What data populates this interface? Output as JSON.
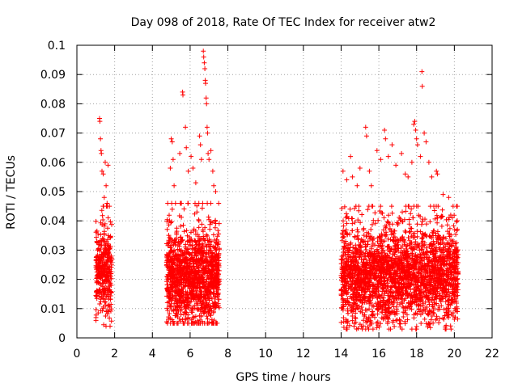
{
  "chart_data": {
    "type": "scatter",
    "title": "Day 098 of 2018, Rate Of TEC Index for receiver atw2",
    "xlabel": "GPS time / hours",
    "ylabel": "ROTI / TECUs",
    "xlim": [
      0,
      22
    ],
    "ylim": [
      0,
      0.1
    ],
    "x_ticks": [
      "0",
      "2",
      "4",
      "6",
      "8",
      "10",
      "12",
      "14",
      "16",
      "18",
      "20",
      "22"
    ],
    "y_ticks": [
      "0",
      "0.01",
      "0.02",
      "0.03",
      "0.04",
      "0.05",
      "0.06",
      "0.07",
      "0.08",
      "0.09",
      "0.1"
    ],
    "grid": true,
    "marker": "+",
    "marker_color": "#ff0000",
    "clusters": [
      {
        "x_range": [
          1.0,
          1.85
        ],
        "median": 0.022,
        "spread": 0.009,
        "min": 0.004,
        "max": 0.045,
        "density": 360
      },
      {
        "x_range": [
          4.75,
          7.55
        ],
        "median": 0.02,
        "spread": 0.01,
        "min": 0.005,
        "max": 0.046,
        "density": 1400
      },
      {
        "x_range": [
          14.0,
          20.2
        ],
        "median": 0.021,
        "spread": 0.01,
        "min": 0.003,
        "max": 0.045,
        "density": 3000
      }
    ],
    "notable_points": [
      {
        "x": 1.2,
        "y": 0.075
      },
      {
        "x": 1.22,
        "y": 0.074
      },
      {
        "x": 1.25,
        "y": 0.068
      },
      {
        "x": 1.28,
        "y": 0.064
      },
      {
        "x": 1.3,
        "y": 0.063
      },
      {
        "x": 1.33,
        "y": 0.057
      },
      {
        "x": 1.4,
        "y": 0.056
      },
      {
        "x": 1.5,
        "y": 0.06
      },
      {
        "x": 1.55,
        "y": 0.052
      },
      {
        "x": 1.45,
        "y": 0.048
      },
      {
        "x": 1.6,
        "y": 0.046
      },
      {
        "x": 1.65,
        "y": 0.059
      },
      {
        "x": 5.0,
        "y": 0.068
      },
      {
        "x": 5.05,
        "y": 0.067
      },
      {
        "x": 5.1,
        "y": 0.061
      },
      {
        "x": 4.95,
        "y": 0.058
      },
      {
        "x": 5.15,
        "y": 0.052
      },
      {
        "x": 5.45,
        "y": 0.063
      },
      {
        "x": 5.6,
        "y": 0.084
      },
      {
        "x": 5.62,
        "y": 0.083
      },
      {
        "x": 5.75,
        "y": 0.072
      },
      {
        "x": 5.8,
        "y": 0.065
      },
      {
        "x": 5.9,
        "y": 0.057
      },
      {
        "x": 6.05,
        "y": 0.062
      },
      {
        "x": 6.15,
        "y": 0.058
      },
      {
        "x": 6.3,
        "y": 0.053
      },
      {
        "x": 6.5,
        "y": 0.069
      },
      {
        "x": 6.55,
        "y": 0.066
      },
      {
        "x": 6.6,
        "y": 0.061
      },
      {
        "x": 6.7,
        "y": 0.098
      },
      {
        "x": 6.72,
        "y": 0.096
      },
      {
        "x": 6.75,
        "y": 0.094
      },
      {
        "x": 6.78,
        "y": 0.092
      },
      {
        "x": 6.8,
        "y": 0.088
      },
      {
        "x": 6.82,
        "y": 0.087
      },
      {
        "x": 6.85,
        "y": 0.082
      },
      {
        "x": 6.87,
        "y": 0.08
      },
      {
        "x": 6.9,
        "y": 0.072
      },
      {
        "x": 6.92,
        "y": 0.07
      },
      {
        "x": 6.95,
        "y": 0.063
      },
      {
        "x": 7.0,
        "y": 0.061
      },
      {
        "x": 7.1,
        "y": 0.064
      },
      {
        "x": 7.2,
        "y": 0.057
      },
      {
        "x": 7.25,
        "y": 0.052
      },
      {
        "x": 7.35,
        "y": 0.05
      },
      {
        "x": 14.1,
        "y": 0.057
      },
      {
        "x": 14.3,
        "y": 0.054
      },
      {
        "x": 14.5,
        "y": 0.062
      },
      {
        "x": 14.6,
        "y": 0.055
      },
      {
        "x": 14.85,
        "y": 0.052
      },
      {
        "x": 15.0,
        "y": 0.058
      },
      {
        "x": 15.3,
        "y": 0.072
      },
      {
        "x": 15.35,
        "y": 0.069
      },
      {
        "x": 15.5,
        "y": 0.057
      },
      {
        "x": 15.6,
        "y": 0.052
      },
      {
        "x": 15.9,
        "y": 0.064
      },
      {
        "x": 16.1,
        "y": 0.061
      },
      {
        "x": 16.3,
        "y": 0.071
      },
      {
        "x": 16.35,
        "y": 0.068
      },
      {
        "x": 16.5,
        "y": 0.062
      },
      {
        "x": 16.7,
        "y": 0.066
      },
      {
        "x": 16.9,
        "y": 0.059
      },
      {
        "x": 17.2,
        "y": 0.063
      },
      {
        "x": 17.4,
        "y": 0.056
      },
      {
        "x": 17.55,
        "y": 0.055
      },
      {
        "x": 17.75,
        "y": 0.06
      },
      {
        "x": 17.85,
        "y": 0.073
      },
      {
        "x": 17.9,
        "y": 0.074
      },
      {
        "x": 17.95,
        "y": 0.071
      },
      {
        "x": 18.0,
        "y": 0.068
      },
      {
        "x": 18.05,
        "y": 0.066
      },
      {
        "x": 18.2,
        "y": 0.062
      },
      {
        "x": 18.28,
        "y": 0.091
      },
      {
        "x": 18.3,
        "y": 0.086
      },
      {
        "x": 18.4,
        "y": 0.07
      },
      {
        "x": 18.5,
        "y": 0.067
      },
      {
        "x": 18.65,
        "y": 0.06
      },
      {
        "x": 18.8,
        "y": 0.055
      },
      {
        "x": 19.05,
        "y": 0.057
      },
      {
        "x": 19.1,
        "y": 0.056
      },
      {
        "x": 19.4,
        "y": 0.049
      },
      {
        "x": 19.7,
        "y": 0.048
      }
    ]
  }
}
